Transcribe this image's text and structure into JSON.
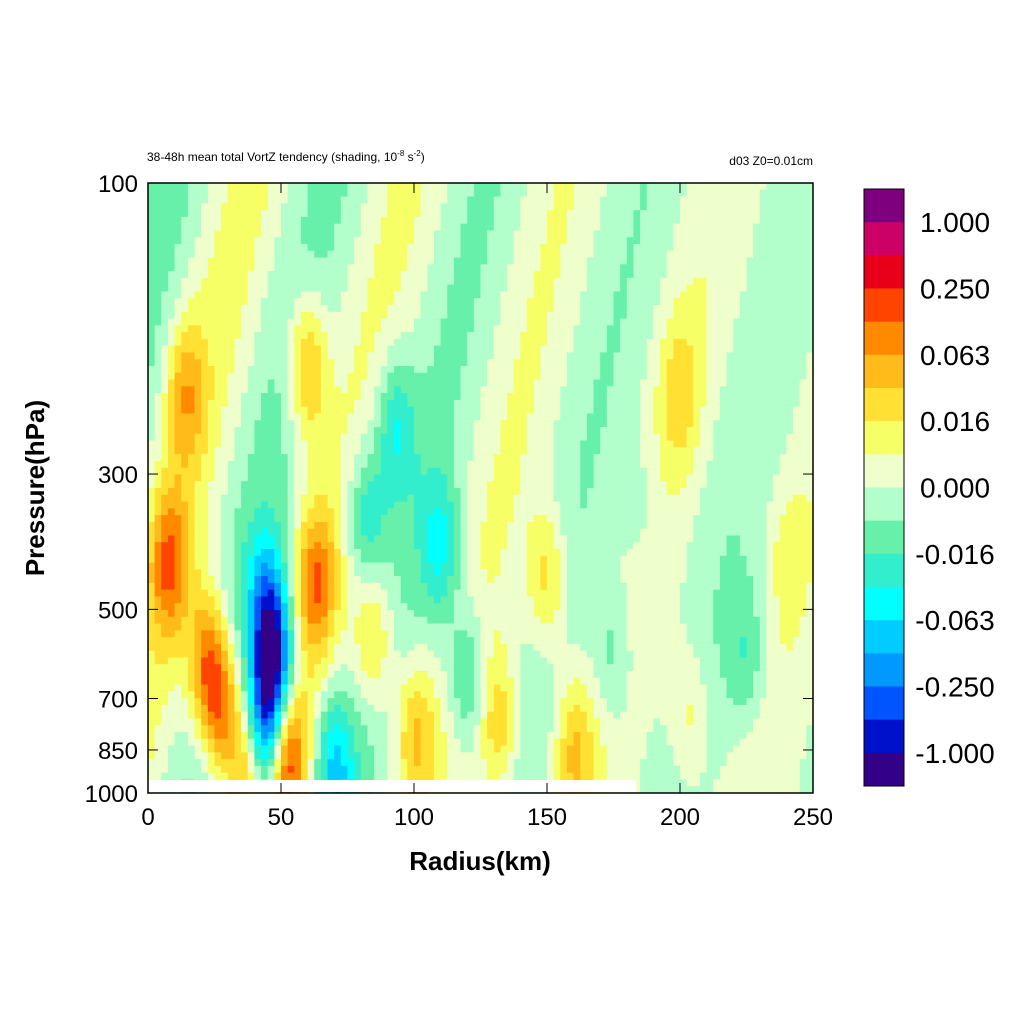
{
  "chart_data": {
    "type": "heatmap",
    "title": "38-48h mean total VortZ tendency  (shading, 10",
    "title_exp1": "-8",
    "title_mid": " s",
    "title_exp2": "-2",
    "title_end": ")",
    "subtitle_right": "d03  Z0=0.01cm",
    "xlabel": "Radius(km)",
    "ylabel": "Pressure(hPa)",
    "xlim": [
      0,
      250
    ],
    "ylim": [
      1000,
      100
    ],
    "y_scale": "log",
    "x_ticks": [
      0,
      50,
      100,
      150,
      200,
      250
    ],
    "x_tick_labels": [
      "0",
      "50",
      "100",
      "150",
      "200",
      "250"
    ],
    "y_ticks": [
      100,
      300,
      500,
      700,
      850,
      1000
    ],
    "y_tick_labels": [
      "100",
      "300",
      "500",
      "700",
      "850",
      "1000"
    ],
    "colorbar": {
      "colors": [
        "#7f007f",
        "#cc0066",
        "#e8001a",
        "#ff4400",
        "#ff8a00",
        "#ffbb1a",
        "#ffe033",
        "#f6ff66",
        "#eeffcc",
        "#b3ffcc",
        "#66f0aa",
        "#33eecc",
        "#00ffff",
        "#00ccff",
        "#0099ff",
        "#0055ff",
        "#0011cc",
        "#330088"
      ],
      "labels": [
        "1.000",
        "0.250",
        "0.063",
        "0.016",
        "0.000",
        "-0.016",
        "-0.063",
        "-0.250",
        "-1.000"
      ]
    },
    "features": [
      {
        "r": 8,
        "p": 420,
        "v": 4
      },
      {
        "r": 14,
        "p": 220,
        "v": 3
      },
      {
        "r": 22,
        "p": 600,
        "v": 4
      },
      {
        "r": 27,
        "p": 720,
        "v": 5
      },
      {
        "r": 38,
        "p": 900,
        "v": 5
      },
      {
        "r": 45,
        "p": 500,
        "v": -5
      },
      {
        "r": 48,
        "p": 650,
        "v": -7
      },
      {
        "r": 43,
        "p": 820,
        "v": -7
      },
      {
        "r": 52,
        "p": 850,
        "v": 6
      },
      {
        "r": 60,
        "p": 200,
        "v": 4
      },
      {
        "r": 63,
        "p": 450,
        "v": 4
      },
      {
        "r": 70,
        "p": 900,
        "v": -4
      },
      {
        "r": 82,
        "p": 350,
        "v": -3
      },
      {
        "r": 85,
        "p": 560,
        "v": 3
      },
      {
        "r": 93,
        "p": 250,
        "v": -3
      },
      {
        "r": 100,
        "p": 800,
        "v": 3
      },
      {
        "r": 110,
        "p": 400,
        "v": -3
      },
      {
        "r": 120,
        "p": 650,
        "v": -3
      },
      {
        "r": 132,
        "p": 780,
        "v": 3
      },
      {
        "r": 150,
        "p": 450,
        "v": 3
      },
      {
        "r": 160,
        "p": 850,
        "v": 3
      },
      {
        "r": 175,
        "p": 600,
        "v": -2
      },
      {
        "r": 185,
        "p": 350,
        "v": -1
      },
      {
        "r": 200,
        "p": 220,
        "v": 2
      },
      {
        "r": 203,
        "p": 750,
        "v": 2
      },
      {
        "r": 225,
        "p": 600,
        "v": -2
      },
      {
        "r": 240,
        "p": 400,
        "v": 1
      }
    ]
  }
}
